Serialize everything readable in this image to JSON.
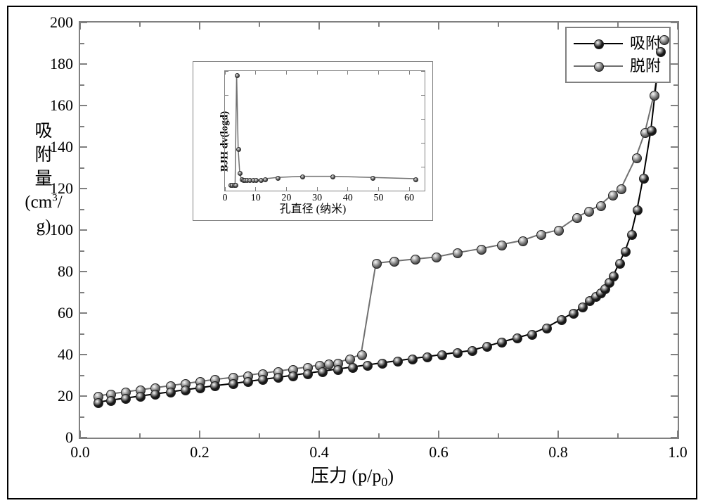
{
  "axis_labels": {
    "y_line1": "吸",
    "y_line2": "附",
    "y_line3": "量",
    "y_line4_html": "(cm<sup>3</sup>/",
    "y_line5": "g)",
    "x_html": "压力 (p/p<sub>0</sub>)"
  },
  "main_chart": {
    "type": "scatter-line",
    "xlim": [
      0.0,
      1.0
    ],
    "ylim": [
      0,
      200
    ],
    "xticks": [
      0.0,
      0.2,
      0.4,
      0.6,
      0.8,
      1.0
    ],
    "xminor": [
      0.1,
      0.3,
      0.5,
      0.7,
      0.9
    ],
    "yticks": [
      0,
      20,
      40,
      60,
      80,
      100,
      120,
      140,
      160,
      180,
      200
    ],
    "yminor": [
      10,
      30,
      50,
      70,
      90,
      110,
      130,
      150,
      170,
      190
    ],
    "line_width": 2,
    "marker_size": 12,
    "background_color": "#ffffff",
    "frame_color": "#808080",
    "series": {
      "adsorption": {
        "label": "吸附",
        "line_color": "#000000",
        "marker_fill": "#1a1a1a",
        "data": [
          [
            0.029,
            17
          ],
          [
            0.05,
            18
          ],
          [
            0.075,
            19
          ],
          [
            0.1,
            20
          ],
          [
            0.125,
            21
          ],
          [
            0.15,
            22
          ],
          [
            0.175,
            23
          ],
          [
            0.2,
            24
          ],
          [
            0.225,
            25
          ],
          [
            0.255,
            26
          ],
          [
            0.28,
            27
          ],
          [
            0.305,
            28
          ],
          [
            0.33,
            29
          ],
          [
            0.355,
            30
          ],
          [
            0.38,
            31
          ],
          [
            0.405,
            32
          ],
          [
            0.43,
            33
          ],
          [
            0.455,
            34
          ],
          [
            0.48,
            35
          ],
          [
            0.505,
            36
          ],
          [
            0.53,
            37
          ],
          [
            0.555,
            38
          ],
          [
            0.58,
            39
          ],
          [
            0.605,
            40
          ],
          [
            0.63,
            41
          ],
          [
            0.655,
            42
          ],
          [
            0.68,
            44
          ],
          [
            0.705,
            46
          ],
          [
            0.73,
            48
          ],
          [
            0.755,
            50
          ],
          [
            0.78,
            53
          ],
          [
            0.805,
            57
          ],
          [
            0.825,
            60
          ],
          [
            0.84,
            63
          ],
          [
            0.852,
            66
          ],
          [
            0.862,
            68
          ],
          [
            0.87,
            70
          ],
          [
            0.878,
            72
          ],
          [
            0.885,
            75
          ],
          [
            0.892,
            78
          ],
          [
            0.902,
            84
          ],
          [
            0.912,
            90
          ],
          [
            0.922,
            98
          ],
          [
            0.932,
            110
          ],
          [
            0.942,
            125
          ],
          [
            0.955,
            148
          ],
          [
            0.97,
            186
          ]
        ]
      },
      "desorption": {
        "label": "脱附",
        "line_color": "#707070",
        "marker_fill": "#707070",
        "data": [
          [
            0.976,
            192
          ],
          [
            0.96,
            165
          ],
          [
            0.945,
            147
          ],
          [
            0.93,
            135
          ],
          [
            0.905,
            120
          ],
          [
            0.89,
            117
          ],
          [
            0.87,
            112
          ],
          [
            0.85,
            109
          ],
          [
            0.83,
            106
          ],
          [
            0.8,
            100
          ],
          [
            0.77,
            98
          ],
          [
            0.74,
            95
          ],
          [
            0.705,
            93
          ],
          [
            0.67,
            91
          ],
          [
            0.63,
            89
          ],
          [
            0.595,
            87
          ],
          [
            0.56,
            86
          ],
          [
            0.525,
            85
          ],
          [
            0.495,
            84
          ],
          [
            0.47,
            40
          ],
          [
            0.45,
            38
          ],
          [
            0.43,
            36
          ],
          [
            0.415,
            35.5
          ],
          [
            0.4,
            35
          ],
          [
            0.38,
            34
          ],
          [
            0.355,
            33
          ],
          [
            0.33,
            32
          ],
          [
            0.305,
            31
          ],
          [
            0.28,
            30
          ],
          [
            0.255,
            29
          ],
          [
            0.225,
            28
          ],
          [
            0.2,
            27
          ],
          [
            0.175,
            26
          ],
          [
            0.15,
            25
          ],
          [
            0.125,
            24
          ],
          [
            0.1,
            23
          ],
          [
            0.075,
            22
          ],
          [
            0.05,
            21
          ],
          [
            0.029,
            20
          ]
        ]
      }
    }
  },
  "legend": {
    "frame_color": "#808080",
    "items": [
      {
        "key": "adsorption"
      },
      {
        "key": "desorption"
      }
    ]
  },
  "inset_chart": {
    "type": "scatter-line",
    "ylabel": "BJH dv(logd)",
    "xlabel": "孔直径 (纳米)",
    "xlim": [
      0,
      65
    ],
    "ylim": [
      0,
      1.0
    ],
    "xticks": [
      0,
      10,
      20,
      30,
      40,
      50,
      60
    ],
    "line_color": "#707070",
    "marker_fill": "#606060",
    "data": [
      [
        1.7,
        0.05
      ],
      [
        2.2,
        0.05
      ],
      [
        2.8,
        0.05
      ],
      [
        3.3,
        0.05
      ],
      [
        3.8,
        0.97
      ],
      [
        4.3,
        0.35
      ],
      [
        4.8,
        0.15
      ],
      [
        5.3,
        0.1
      ],
      [
        5.8,
        0.09
      ],
      [
        6.3,
        0.09
      ],
      [
        7.0,
        0.09
      ],
      [
        8.0,
        0.09
      ],
      [
        9.0,
        0.09
      ],
      [
        10.0,
        0.09
      ],
      [
        11.5,
        0.09
      ],
      [
        13.0,
        0.1
      ],
      [
        17.0,
        0.11
      ],
      [
        25.0,
        0.12
      ],
      [
        35.0,
        0.12
      ],
      [
        48.0,
        0.11
      ],
      [
        62.0,
        0.1
      ]
    ]
  }
}
